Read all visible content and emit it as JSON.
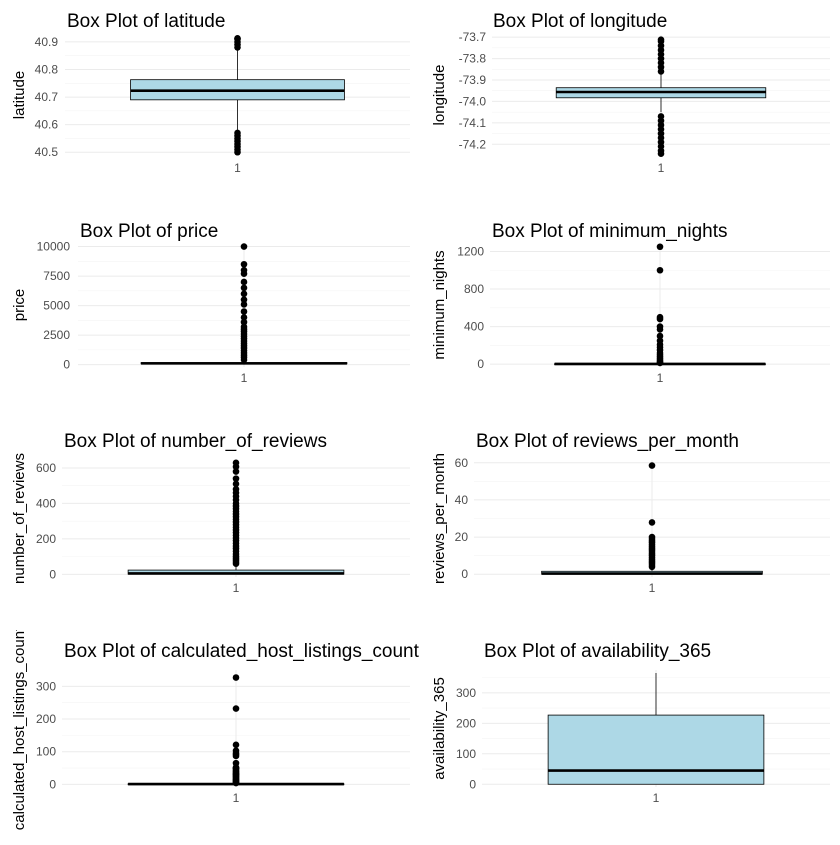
{
  "colors": {
    "box_fill": "#add8e6",
    "box_stroke": "#000000",
    "grid_major": "#ebebeb",
    "grid_minor": "#f4f4f4",
    "tick_text": "#4d4d4d",
    "title_text": "#000000"
  },
  "chart_data": [
    {
      "type": "box",
      "title": "Box Plot of latitude",
      "ylabel": "latitude",
      "categories": [
        "1"
      ],
      "ylim": [
        40.49,
        40.925
      ],
      "yticks": [
        40.5,
        40.6,
        40.7,
        40.8,
        40.9
      ],
      "ytick_labels": [
        "40.5",
        "40.6",
        "40.7",
        "40.8",
        "40.9"
      ],
      "box": {
        "q1": 40.69,
        "median": 40.723,
        "q3": 40.763,
        "whisker_low": 40.58,
        "whisker_high": 40.87
      },
      "outliers": [
        40.5,
        40.51,
        40.52,
        40.53,
        40.54,
        40.55,
        40.56,
        40.57,
        40.88,
        40.89,
        40.9,
        40.91,
        40.913
      ]
    },
    {
      "type": "box",
      "title": "Box Plot of longitude",
      "ylabel": "longitude",
      "categories": [
        "1"
      ],
      "ylim": [
        -74.25,
        -73.69
      ],
      "yticks": [
        -74.2,
        -74.1,
        -74.0,
        -73.9,
        -73.8,
        -73.7
      ],
      "ytick_labels": [
        "-74.2",
        "-74.1",
        "-74.0",
        "-73.9",
        "-73.8",
        "-73.7"
      ],
      "box": {
        "q1": -73.983,
        "median": -73.956,
        "q3": -73.936,
        "whisker_low": -74.05,
        "whisker_high": -73.87
      },
      "outliers": [
        -74.244,
        -74.23,
        -74.21,
        -74.19,
        -74.17,
        -74.15,
        -74.13,
        -74.11,
        -74.09,
        -74.07,
        -73.86,
        -73.84,
        -73.82,
        -73.8,
        -73.78,
        -73.76,
        -73.74,
        -73.72,
        -73.712
      ]
    },
    {
      "type": "box",
      "title": "Box Plot of price",
      "ylabel": "price",
      "categories": [
        "1"
      ],
      "ylim": [
        -200,
        10300
      ],
      "yticks": [
        0,
        2500,
        5000,
        7500,
        10000
      ],
      "ytick_labels": [
        "0",
        "2500",
        "5000",
        "7500",
        "10000"
      ],
      "box": {
        "q1": 69,
        "median": 106,
        "q3": 175,
        "whisker_low": 0,
        "whisker_high": 334
      },
      "outliers": [
        400,
        600,
        800,
        1000,
        1200,
        1400,
        1600,
        1800,
        2000,
        2200,
        2400,
        2600,
        2800,
        3000,
        3200,
        3600,
        4000,
        4500,
        5100,
        5500,
        6000,
        6500,
        7000,
        7700,
        8000,
        8500,
        10000
      ]
    },
    {
      "type": "box",
      "title": "Box Plot of minimum_nights",
      "ylabel": "minimum_nights",
      "categories": [
        "1"
      ],
      "ylim": [
        -30,
        1290
      ],
      "yticks": [
        0,
        400,
        800,
        1200
      ],
      "ytick_labels": [
        "0",
        "400",
        "800",
        "1200"
      ],
      "box": {
        "q1": 1,
        "median": 3,
        "q3": 5,
        "whisker_low": 1,
        "whisker_high": 11
      },
      "outliers": [
        13,
        20,
        30,
        45,
        60,
        80,
        100,
        120,
        150,
        180,
        210,
        250,
        300,
        370,
        400,
        480,
        500,
        1000,
        1250
      ]
    },
    {
      "type": "box",
      "title": "Box Plot of number_of_reviews",
      "ylabel": "number_of_reviews",
      "categories": [
        "1"
      ],
      "ylim": [
        -15,
        645
      ],
      "yticks": [
        0,
        200,
        400,
        600
      ],
      "ytick_labels": [
        "0",
        "200",
        "400",
        "600"
      ],
      "box": {
        "q1": 1,
        "median": 5,
        "q3": 24,
        "whisker_low": 0,
        "whisker_high": 58
      },
      "outliers": [
        60,
        70,
        80,
        90,
        100,
        115,
        130,
        145,
        160,
        175,
        190,
        205,
        220,
        235,
        250,
        265,
        280,
        295,
        310,
        325,
        340,
        355,
        370,
        385,
        400,
        420,
        440,
        460,
        480,
        510,
        540,
        580,
        607,
        629
      ]
    },
    {
      "type": "box",
      "title": "Box Plot of reviews_per_month",
      "ylabel": "reviews_per_month",
      "categories": [
        "1"
      ],
      "ylim": [
        -1.5,
        61.5
      ],
      "yticks": [
        0,
        20,
        40,
        60
      ],
      "ytick_labels": [
        "0",
        "20",
        "40",
        "60"
      ],
      "box": {
        "q1": 0.04,
        "median": 0.37,
        "q3": 1.58,
        "whisker_low": 0,
        "whisker_high": 3.9
      },
      "outliers": [
        4,
        5,
        6,
        7,
        8,
        9,
        10,
        11,
        12,
        13,
        14,
        15,
        16,
        17,
        18,
        19,
        20,
        27.9,
        58.5
      ]
    },
    {
      "type": "box",
      "title": "Box Plot of calculated_host_listings_count",
      "ylabel": "calculated_host_listings_count",
      "categories": [
        "1"
      ],
      "ylim": [
        -8,
        350
      ],
      "yticks": [
        0,
        100,
        200,
        300
      ],
      "ytick_labels": [
        "0",
        "100",
        "200",
        "300"
      ],
      "box": {
        "q1": 1,
        "median": 1,
        "q3": 2,
        "whisker_low": 1,
        "whisker_high": 3
      },
      "outliers": [
        4,
        6,
        8,
        10,
        13,
        15,
        18,
        20,
        23,
        25,
        28,
        30,
        32,
        34,
        37,
        39,
        43,
        47,
        49,
        50,
        52,
        65,
        87,
        91,
        96,
        103,
        121,
        232,
        327
      ]
    },
    {
      "type": "box",
      "title": "Box Plot of availability_365",
      "ylabel": "availability_365",
      "categories": [
        "1"
      ],
      "ylim": [
        -9,
        375
      ],
      "yticks": [
        0,
        100,
        200,
        300
      ],
      "ytick_labels": [
        "0",
        "100",
        "200",
        "300"
      ],
      "box": {
        "q1": 0,
        "median": 45,
        "q3": 227,
        "whisker_low": 0,
        "whisker_high": 365
      },
      "outliers": []
    }
  ]
}
